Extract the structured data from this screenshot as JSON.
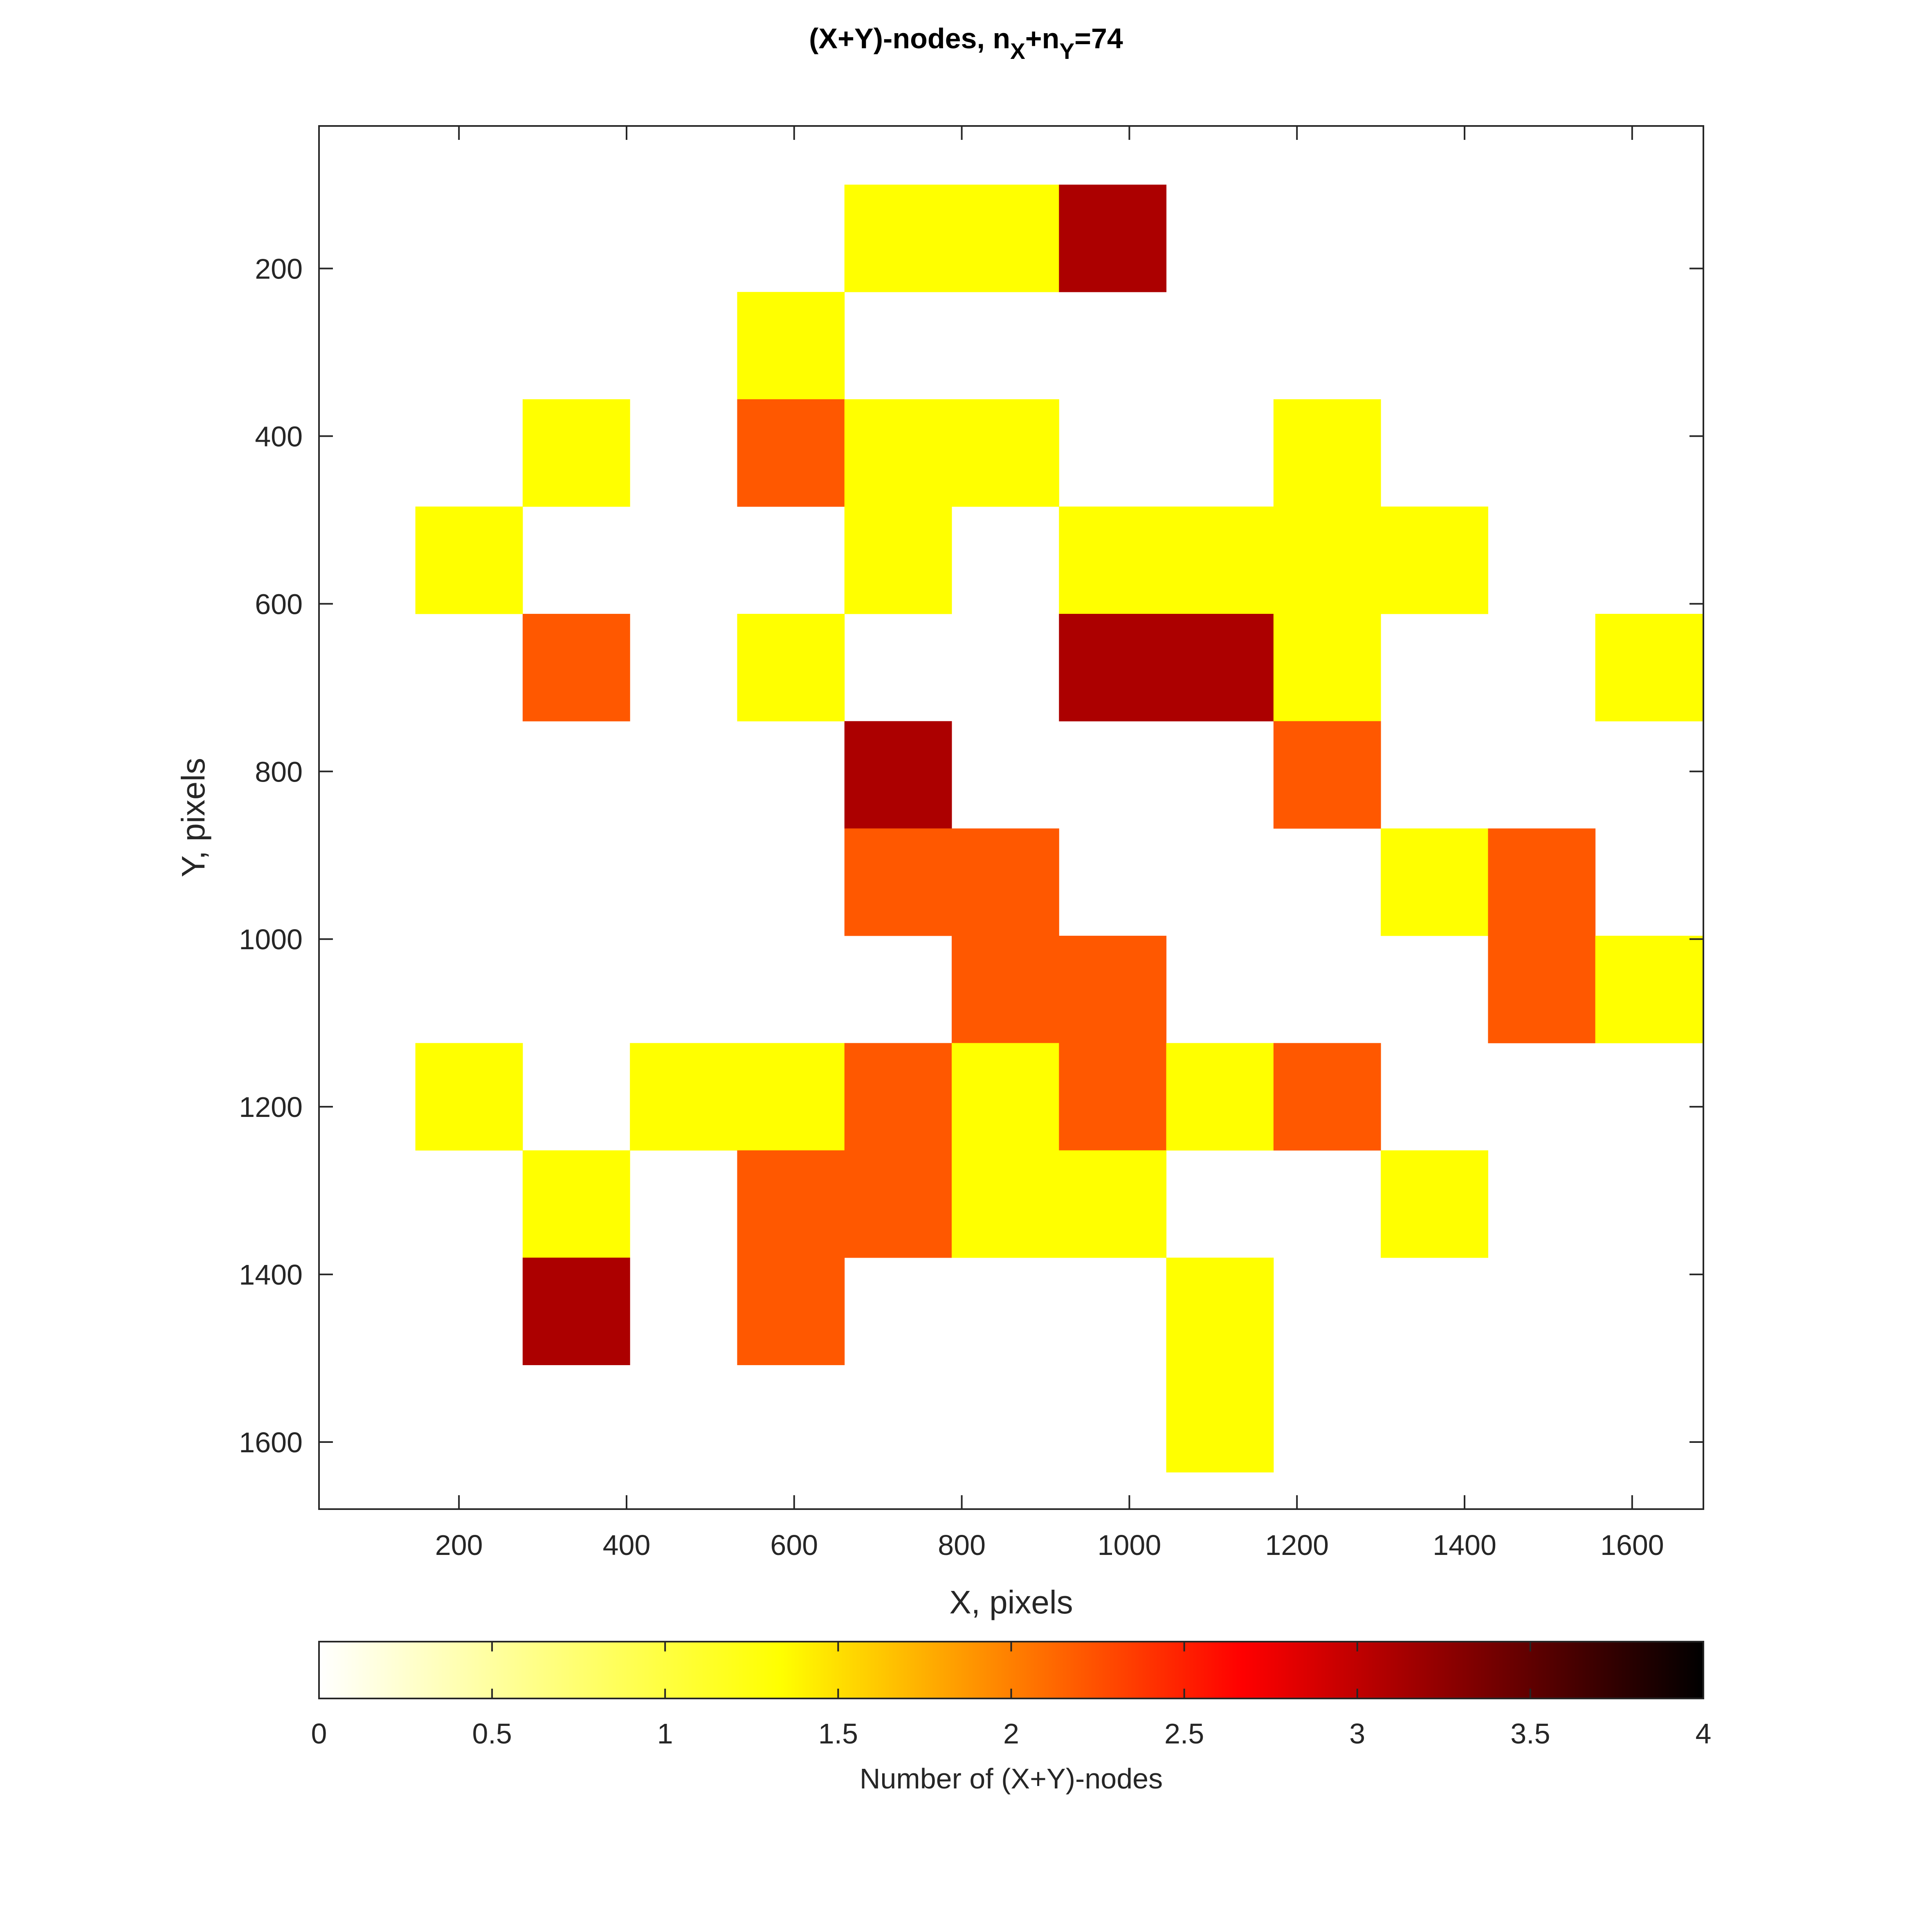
{
  "chart_data": {
    "type": "heatmap",
    "title": {
      "main": "(X+Y)-nodes, n",
      "sub1": "X",
      "mid": "+n",
      "sub2": "Y",
      "tail": "=74"
    },
    "xlabel": "X, pixels",
    "ylabel": "Y, pixels",
    "xlim": [
      33,
      1685
    ],
    "ylim": [
      1680,
      30
    ],
    "x_ticks": [
      200,
      400,
      600,
      800,
      1000,
      1200,
      1400,
      1600
    ],
    "y_ticks": [
      200,
      400,
      600,
      800,
      1000,
      1200,
      1400,
      1600
    ],
    "cell_size": [
      128,
      128
    ],
    "grid_origin": [
      148,
      100
    ],
    "grid_cols": 12,
    "grid_rows": 12,
    "grid": [
      [
        0,
        0,
        0,
        0,
        1,
        1,
        3,
        0,
        0,
        0,
        0,
        0
      ],
      [
        0,
        0,
        0,
        1,
        0,
        0,
        0,
        0,
        0,
        0,
        0,
        0
      ],
      [
        0,
        1,
        0,
        2,
        1,
        1,
        0,
        0,
        1,
        0,
        0,
        0
      ],
      [
        1,
        0,
        0,
        0,
        1,
        0,
        1,
        1,
        1,
        1,
        0,
        0
      ],
      [
        0,
        2,
        0,
        1,
        0,
        0,
        3,
        3,
        1,
        0,
        0,
        1
      ],
      [
        0,
        0,
        0,
        0,
        3,
        0,
        0,
        0,
        2,
        0,
        0,
        0
      ],
      [
        0,
        0,
        0,
        0,
        2,
        2,
        0,
        0,
        0,
        1,
        2,
        0
      ],
      [
        0,
        0,
        0,
        0,
        0,
        2,
        2,
        0,
        0,
        0,
        2,
        1
      ],
      [
        1,
        0,
        1,
        1,
        2,
        1,
        2,
        1,
        2,
        0,
        0,
        0
      ],
      [
        0,
        1,
        0,
        2,
        2,
        1,
        1,
        0,
        0,
        1,
        0,
        0
      ],
      [
        0,
        3,
        0,
        2,
        0,
        0,
        0,
        1,
        0,
        0,
        0,
        0
      ],
      [
        0,
        0,
        0,
        0,
        0,
        0,
        0,
        1,
        0,
        0,
        0,
        0
      ]
    ],
    "colormap": "hot (reversed)",
    "value_colors": [
      "#ffffff",
      "#ffff00",
      "#ff5800",
      "#ac0000",
      "#000000"
    ],
    "colorbar": {
      "label": "Number of (X+Y)-nodes",
      "range": [
        0,
        4
      ],
      "ticks": [
        "0",
        "0.5",
        "1",
        "1.5",
        "2",
        "2.5",
        "3",
        "3.5",
        "4"
      ],
      "placement": "bottom",
      "stops": [
        "#ffffff",
        "#ffff00",
        "#ff0000",
        "#000000"
      ]
    },
    "grid_lines": false,
    "legend": "none"
  }
}
